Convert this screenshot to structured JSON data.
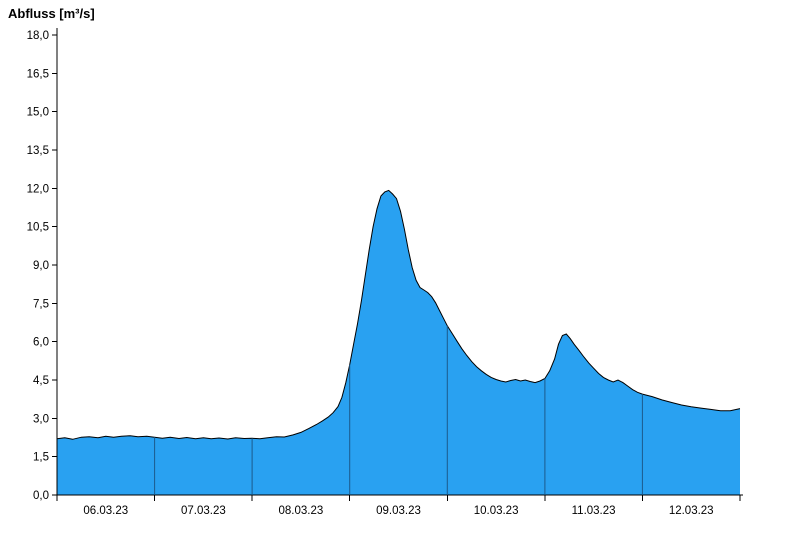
{
  "chart_data": {
    "type": "area",
    "title": "Abfluss [m³/s]",
    "xlabel": "",
    "ylabel": "Abfluss [m³/s]",
    "xlim": [
      0,
      7
    ],
    "ylim": [
      0,
      18
    ],
    "x_axis_unit": "days since 06.03.23 00:00",
    "x_tick_day_labels": [
      "06.03.23",
      "07.03.23",
      "08.03.23",
      "09.03.23",
      "10.03.23",
      "11.03.23",
      "12.03.23"
    ],
    "y_tick_values": [
      0,
      1.5,
      3,
      4.5,
      6,
      7.5,
      9,
      10.5,
      12,
      13.5,
      15,
      16.5,
      18
    ],
    "y_tick_labels": [
      "0,0",
      "1,5",
      "3,0",
      "4,5",
      "6,0",
      "7,5",
      "9,0",
      "10,5",
      "12,0",
      "13,5",
      "15,0",
      "16,5",
      "18,0"
    ],
    "day_boundaries": [
      0,
      1,
      2,
      3,
      4,
      5,
      6,
      7
    ],
    "inner_day_lines": [
      1,
      2,
      3,
      4,
      5,
      6
    ],
    "grid": false,
    "legend": false,
    "colors": {
      "fill": "#29A1F1",
      "outline": "#000000",
      "day_line": "#1C5A8C",
      "axis": "#000000",
      "text": "#000000"
    },
    "series": [
      {
        "name": "Abfluss",
        "points": [
          [
            0.0,
            2.2
          ],
          [
            0.08,
            2.24
          ],
          [
            0.16,
            2.18
          ],
          [
            0.25,
            2.26
          ],
          [
            0.33,
            2.28
          ],
          [
            0.42,
            2.24
          ],
          [
            0.5,
            2.3
          ],
          [
            0.58,
            2.26
          ],
          [
            0.66,
            2.3
          ],
          [
            0.75,
            2.32
          ],
          [
            0.83,
            2.28
          ],
          [
            0.92,
            2.3
          ],
          [
            1.0,
            2.26
          ],
          [
            1.08,
            2.22
          ],
          [
            1.16,
            2.26
          ],
          [
            1.25,
            2.21
          ],
          [
            1.33,
            2.25
          ],
          [
            1.42,
            2.2
          ],
          [
            1.5,
            2.24
          ],
          [
            1.58,
            2.2
          ],
          [
            1.66,
            2.23
          ],
          [
            1.75,
            2.19
          ],
          [
            1.83,
            2.24
          ],
          [
            1.92,
            2.21
          ],
          [
            2.0,
            2.22
          ],
          [
            2.08,
            2.2
          ],
          [
            2.16,
            2.24
          ],
          [
            2.25,
            2.28
          ],
          [
            2.33,
            2.27
          ],
          [
            2.42,
            2.35
          ],
          [
            2.5,
            2.45
          ],
          [
            2.58,
            2.6
          ],
          [
            2.66,
            2.76
          ],
          [
            2.72,
            2.9
          ],
          [
            2.78,
            3.05
          ],
          [
            2.83,
            3.22
          ],
          [
            2.88,
            3.46
          ],
          [
            2.92,
            3.82
          ],
          [
            2.96,
            4.4
          ],
          [
            3.0,
            5.1
          ],
          [
            3.04,
            5.9
          ],
          [
            3.08,
            6.7
          ],
          [
            3.12,
            7.6
          ],
          [
            3.16,
            8.6
          ],
          [
            3.2,
            9.6
          ],
          [
            3.24,
            10.5
          ],
          [
            3.28,
            11.2
          ],
          [
            3.32,
            11.7
          ],
          [
            3.36,
            11.86
          ],
          [
            3.4,
            11.92
          ],
          [
            3.44,
            11.78
          ],
          [
            3.48,
            11.6
          ],
          [
            3.52,
            11.1
          ],
          [
            3.56,
            10.4
          ],
          [
            3.6,
            9.6
          ],
          [
            3.64,
            8.9
          ],
          [
            3.68,
            8.4
          ],
          [
            3.72,
            8.12
          ],
          [
            3.76,
            8.02
          ],
          [
            3.8,
            7.92
          ],
          [
            3.84,
            7.76
          ],
          [
            3.88,
            7.52
          ],
          [
            3.92,
            7.22
          ],
          [
            3.96,
            6.92
          ],
          [
            4.0,
            6.62
          ],
          [
            4.05,
            6.32
          ],
          [
            4.1,
            6.02
          ],
          [
            4.15,
            5.72
          ],
          [
            4.2,
            5.46
          ],
          [
            4.25,
            5.22
          ],
          [
            4.3,
            5.02
          ],
          [
            4.35,
            4.86
          ],
          [
            4.4,
            4.72
          ],
          [
            4.45,
            4.6
          ],
          [
            4.5,
            4.52
          ],
          [
            4.55,
            4.46
          ],
          [
            4.6,
            4.42
          ],
          [
            4.65,
            4.48
          ],
          [
            4.7,
            4.52
          ],
          [
            4.75,
            4.46
          ],
          [
            4.8,
            4.5
          ],
          [
            4.85,
            4.44
          ],
          [
            4.9,
            4.4
          ],
          [
            4.95,
            4.46
          ],
          [
            5.0,
            4.56
          ],
          [
            5.05,
            4.86
          ],
          [
            5.1,
            5.32
          ],
          [
            5.14,
            5.9
          ],
          [
            5.18,
            6.24
          ],
          [
            5.22,
            6.3
          ],
          [
            5.26,
            6.12
          ],
          [
            5.3,
            5.9
          ],
          [
            5.35,
            5.66
          ],
          [
            5.4,
            5.4
          ],
          [
            5.45,
            5.16
          ],
          [
            5.5,
            4.96
          ],
          [
            5.55,
            4.76
          ],
          [
            5.6,
            4.6
          ],
          [
            5.65,
            4.5
          ],
          [
            5.7,
            4.42
          ],
          [
            5.75,
            4.5
          ],
          [
            5.8,
            4.4
          ],
          [
            5.85,
            4.26
          ],
          [
            5.9,
            4.12
          ],
          [
            5.95,
            4.02
          ],
          [
            6.0,
            3.95
          ],
          [
            6.1,
            3.85
          ],
          [
            6.2,
            3.72
          ],
          [
            6.3,
            3.62
          ],
          [
            6.4,
            3.52
          ],
          [
            6.5,
            3.45
          ],
          [
            6.6,
            3.4
          ],
          [
            6.7,
            3.35
          ],
          [
            6.8,
            3.3
          ],
          [
            6.9,
            3.3
          ],
          [
            7.0,
            3.38
          ]
        ]
      }
    ]
  }
}
